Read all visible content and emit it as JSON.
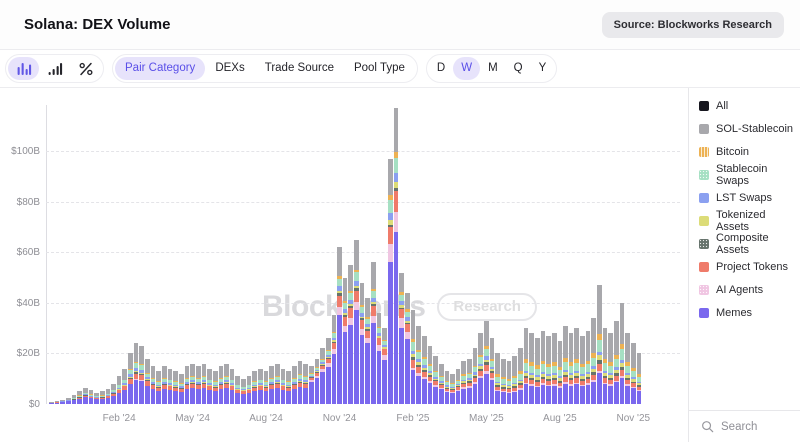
{
  "header": {
    "title": "Solana: DEX Volume",
    "source_badge": "Source: Blockworks Research"
  },
  "toolbar": {
    "chart_type_icons": [
      {
        "name": "stacked-bar-chart",
        "active": true
      },
      {
        "name": "bar-chart",
        "active": false
      },
      {
        "name": "percent-change",
        "active": false
      }
    ],
    "category_tabs": [
      {
        "label": "Pair Category",
        "active": true
      },
      {
        "label": "DEXs",
        "active": false
      },
      {
        "label": "Trade Source",
        "active": false
      },
      {
        "label": "Pool Type",
        "active": false
      }
    ],
    "range_buttons": [
      {
        "label": "D",
        "active": false
      },
      {
        "label": "W",
        "active": true
      },
      {
        "label": "M",
        "active": false
      },
      {
        "label": "Q",
        "active": false
      },
      {
        "label": "Y",
        "active": false
      }
    ]
  },
  "watermark": {
    "brand": "Blockworks",
    "suffix": "Research"
  },
  "legend": {
    "items": [
      {
        "label": "All",
        "color": "#17171f",
        "pattern": "solid"
      },
      {
        "label": "SOL-Stablecoin",
        "color": "#a8a8ac",
        "pattern": "solid"
      },
      {
        "label": "Bitcoin",
        "color": "#edb254",
        "pattern": "stripes"
      },
      {
        "label": "Stablecoin Swaps",
        "color": "#a6e0c3",
        "pattern": "dots"
      },
      {
        "label": "LST Swaps",
        "color": "#8ba0f0",
        "pattern": "solid"
      },
      {
        "label": "Tokenized Assets",
        "color": "#dcdc78",
        "pattern": "solid"
      },
      {
        "label": "Composite Assets",
        "color": "#66736c",
        "pattern": "dots"
      },
      {
        "label": "Project Tokens",
        "color": "#ef7b6a",
        "pattern": "solid"
      },
      {
        "label": "AI Agents",
        "color": "#f0c6e2",
        "pattern": "dots"
      },
      {
        "label": "Memes",
        "color": "#7a68ee",
        "pattern": "solid"
      }
    ]
  },
  "search": {
    "placeholder": "Search"
  },
  "chart_data": {
    "type": "bar",
    "stacked": true,
    "title": "Solana: DEX Volume, weekly, by pair category",
    "unit": "billions USD",
    "ylim": [
      0,
      120
    ],
    "grid": "dashed horizontal",
    "legend_position": "right",
    "y_ticks": [
      {
        "label": "$0",
        "value": 0
      },
      {
        "label": "$20B",
        "value": 20
      },
      {
        "label": "$40B",
        "value": 40
      },
      {
        "label": "$60B",
        "value": 60
      },
      {
        "label": "$80B",
        "value": 80
      },
      {
        "label": "$100B",
        "value": 100
      }
    ],
    "x_ticks": [
      {
        "label": "Feb '24",
        "week": 12
      },
      {
        "label": "May '24",
        "week": 25
      },
      {
        "label": "Aug '24",
        "week": 38
      },
      {
        "label": "Nov '24",
        "week": 51
      },
      {
        "label": "Feb '25",
        "week": 64
      },
      {
        "label": "May '25",
        "week": 77
      },
      {
        "label": "Aug '25",
        "week": 90
      },
      {
        "label": "Nov '25",
        "week": 103
      }
    ],
    "series_order_bottom_to_top": [
      "Memes",
      "AI Agents",
      "Project Tokens",
      "Composite Assets",
      "Tokenized Assets",
      "LST Swaps",
      "Stablecoin Swaps",
      "Bitcoin",
      "SOL-Stablecoin"
    ],
    "series_colors": {
      "Memes": "#7a68ee",
      "AI Agents": "#f0c6e2",
      "Project Tokens": "#ef7b6a",
      "Composite Assets": "#66736c",
      "Tokenized Assets": "#dcdc78",
      "LST Swaps": "#8ba0f0",
      "Stablecoin Swaps": "#a6e0c3",
      "Bitcoin": "#edb254",
      "SOL-Stablecoin": "#a8a8ac"
    },
    "mix_profiles": [
      {
        "era": "2024",
        "shares": {
          "Memes": 0.4,
          "AI Agents": 0.005,
          "Project Tokens": 0.095,
          "Composite Assets": 0.02,
          "Tokenized Assets": 0.02,
          "LST Swaps": 0.05,
          "Stablecoin Swaps": 0.08,
          "Bitcoin": 0.02,
          "SOL-Stablecoin": 0.31
        }
      },
      {
        "era": "late-2024-bull",
        "shares": {
          "Memes": 0.57,
          "AI Agents": 0.05,
          "Project Tokens": 0.07,
          "Composite Assets": 0.015,
          "Tokenized Assets": 0.015,
          "LST Swaps": 0.03,
          "Stablecoin Swaps": 0.05,
          "Bitcoin": 0.015,
          "SOL-Stablecoin": 0.185
        }
      },
      {
        "era": "jan-2025",
        "shares": {
          "Memes": 0.58,
          "AI Agents": 0.07,
          "Project Tokens": 0.07,
          "Composite Assets": 0.01,
          "Tokenized Assets": 0.02,
          "LST Swaps": 0.03,
          "Stablecoin Swaps": 0.05,
          "Bitcoin": 0.02,
          "SOL-Stablecoin": 0.15
        }
      },
      {
        "era": "spring-2025",
        "shares": {
          "Memes": 0.36,
          "AI Agents": 0.03,
          "Project Tokens": 0.08,
          "Composite Assets": 0.03,
          "Tokenized Assets": 0.03,
          "LST Swaps": 0.04,
          "Stablecoin Swaps": 0.09,
          "Bitcoin": 0.03,
          "SOL-Stablecoin": 0.31
        }
      },
      {
        "era": "late-2025",
        "shares": {
          "Memes": 0.26,
          "AI Agents": 0.02,
          "Project Tokens": 0.06,
          "Composite Assets": 0.03,
          "Tokenized Assets": 0.04,
          "LST Swaps": 0.03,
          "Stablecoin Swaps": 0.1,
          "Bitcoin": 0.05,
          "SOL-Stablecoin": 0.41
        }
      }
    ],
    "weeks_note": "each entry = [total_volume_billions_usd, mix_profile_index]; weekly bars from mid-Nov 2023 to mid-Nov 2025",
    "weeks": [
      [
        0.8,
        0
      ],
      [
        1.3,
        0
      ],
      [
        1.8,
        0
      ],
      [
        2.5,
        0
      ],
      [
        3.5,
        0
      ],
      [
        5,
        0
      ],
      [
        6.5,
        0
      ],
      [
        5.5,
        0
      ],
      [
        4.5,
        0
      ],
      [
        5,
        0
      ],
      [
        6,
        0
      ],
      [
        8,
        0
      ],
      [
        11,
        0
      ],
      [
        14,
        0
      ],
      [
        20,
        0
      ],
      [
        24,
        0
      ],
      [
        23,
        0
      ],
      [
        18,
        0
      ],
      [
        15,
        0
      ],
      [
        13,
        0
      ],
      [
        15,
        0
      ],
      [
        14,
        0
      ],
      [
        13,
        0
      ],
      [
        12,
        0
      ],
      [
        15,
        0
      ],
      [
        16,
        0
      ],
      [
        15,
        0
      ],
      [
        16,
        0
      ],
      [
        14,
        0
      ],
      [
        13,
        0
      ],
      [
        15,
        0
      ],
      [
        16,
        0
      ],
      [
        14,
        0
      ],
      [
        11,
        0
      ],
      [
        10,
        0
      ],
      [
        11,
        0
      ],
      [
        13,
        0
      ],
      [
        14,
        0
      ],
      [
        13,
        0
      ],
      [
        15,
        0
      ],
      [
        16,
        0
      ],
      [
        14,
        0
      ],
      [
        13,
        0
      ],
      [
        15,
        0
      ],
      [
        17,
        0
      ],
      [
        16,
        0
      ],
      [
        15,
        1
      ],
      [
        18,
        1
      ],
      [
        22,
        1
      ],
      [
        26,
        1
      ],
      [
        35,
        1
      ],
      [
        62,
        1
      ],
      [
        50,
        1
      ],
      [
        55,
        1
      ],
      [
        65,
        1
      ],
      [
        48,
        1
      ],
      [
        42,
        1
      ],
      [
        56,
        1
      ],
      [
        36,
        2
      ],
      [
        30,
        2
      ],
      [
        97,
        2
      ],
      [
        117,
        2
      ],
      [
        52,
        2
      ],
      [
        44,
        2
      ],
      [
        37,
        3
      ],
      [
        31,
        3
      ],
      [
        27,
        3
      ],
      [
        23,
        3
      ],
      [
        19,
        3
      ],
      [
        16,
        3
      ],
      [
        13,
        3
      ],
      [
        12,
        3
      ],
      [
        14,
        3
      ],
      [
        17,
        3
      ],
      [
        18,
        3
      ],
      [
        22,
        3
      ],
      [
        28,
        3
      ],
      [
        33,
        3
      ],
      [
        26,
        3
      ],
      [
        20,
        4
      ],
      [
        18,
        4
      ],
      [
        17,
        4
      ],
      [
        19,
        4
      ],
      [
        22,
        4
      ],
      [
        30,
        4
      ],
      [
        28,
        4
      ],
      [
        26,
        4
      ],
      [
        29,
        4
      ],
      [
        27,
        4
      ],
      [
        28,
        4
      ],
      [
        25,
        4
      ],
      [
        31,
        4
      ],
      [
        28,
        4
      ],
      [
        30,
        4
      ],
      [
        27,
        4
      ],
      [
        29,
        4
      ],
      [
        34,
        4
      ],
      [
        47,
        4
      ],
      [
        30,
        4
      ],
      [
        28,
        4
      ],
      [
        33,
        4
      ],
      [
        40,
        4
      ],
      [
        28,
        4
      ],
      [
        24,
        4
      ],
      [
        20,
        4
      ]
    ]
  }
}
